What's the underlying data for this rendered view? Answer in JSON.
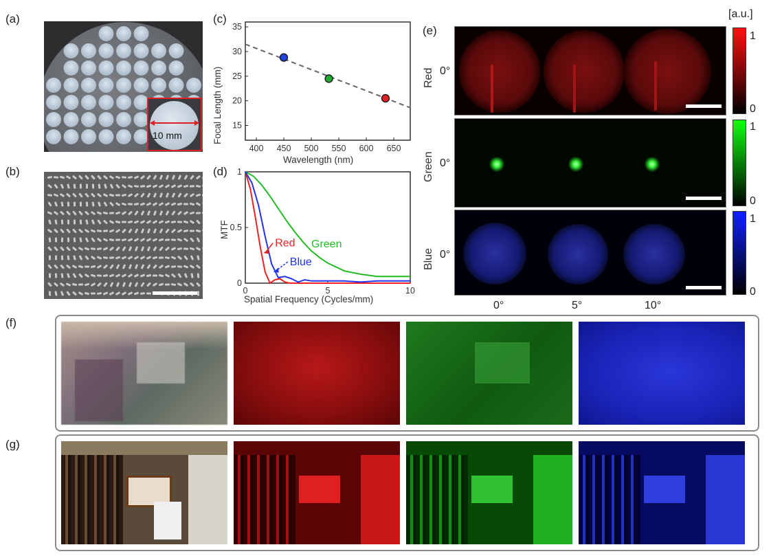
{
  "panel_labels": {
    "a": "(a)",
    "b": "(b)",
    "c": "(c)",
    "d": "(d)",
    "e": "(e)",
    "f": "(f)",
    "g": "(g)"
  },
  "panel_a": {
    "inset_label": "10 mm",
    "lens_rows": 7,
    "lens_cols": 9
  },
  "chart_data": [
    {
      "type": "scatter",
      "xlabel": "Wavelength (nm)",
      "ylabel": "Focal Length (mm)",
      "xlim": [
        380,
        680
      ],
      "ylim": [
        12,
        36
      ],
      "xticks": [
        "400",
        "450",
        "500",
        "550",
        "600",
        "650"
      ],
      "yticks": [
        "15",
        "20",
        "25",
        "30",
        "35"
      ],
      "points": [
        {
          "x": 450,
          "y": 28.8,
          "color": "#2244dd"
        },
        {
          "x": 532,
          "y": 24.5,
          "color": "#22aa33"
        },
        {
          "x": 635,
          "y": 20.5,
          "color": "#dd2222"
        }
      ],
      "fit_line": {
        "x": [
          380,
          680
        ],
        "y": [
          31.5,
          18.6
        ],
        "color": "#666666"
      }
    },
    {
      "type": "line",
      "xlabel": "Spatial Frequency (Cycles/mm)",
      "ylabel": "MTF",
      "xlim": [
        0,
        10
      ],
      "ylim": [
        0,
        1
      ],
      "xticks": [
        "0",
        "5",
        "10"
      ],
      "yticks": [
        "0",
        "0.5",
        "1"
      ],
      "series": [
        {
          "name": "Green",
          "color": "#22bb22",
          "x": [
            0,
            0.5,
            1,
            1.5,
            2,
            2.5,
            3,
            3.5,
            4,
            4.5,
            5,
            6,
            7,
            8,
            9,
            10
          ],
          "y": [
            1,
            0.96,
            0.88,
            0.78,
            0.67,
            0.56,
            0.46,
            0.37,
            0.29,
            0.23,
            0.18,
            0.11,
            0.08,
            0.06,
            0.06,
            0.06
          ]
        },
        {
          "name": "Red",
          "color": "#ee2222",
          "x": [
            0,
            0.3,
            0.6,
            0.9,
            1.2,
            1.5,
            1.8,
            2.1,
            2.4,
            2.7,
            3,
            10
          ],
          "y": [
            1,
            0.85,
            0.6,
            0.33,
            0.1,
            0.0,
            0.03,
            0.04,
            0.01,
            0.0,
            0.0,
            0.0
          ]
        },
        {
          "name": "Blue",
          "color": "#2233ee",
          "x": [
            0,
            0.4,
            0.8,
            1.2,
            1.6,
            2.0,
            2.4,
            2.8,
            3.2,
            3.6,
            4,
            5,
            6,
            7,
            8,
            9,
            10
          ],
          "y": [
            1,
            0.9,
            0.7,
            0.42,
            0.17,
            0.05,
            0.06,
            0.04,
            0.01,
            0.03,
            0.02,
            0.02,
            0.02,
            0.01,
            0.02,
            0.02,
            0.02
          ]
        }
      ]
    }
  ],
  "panel_e": {
    "unit_label": "[a.u.]",
    "rows": [
      {
        "name": "Red",
        "angle": "0°",
        "color": "#ff1010",
        "cb_top": "1",
        "cb_bottom": "0"
      },
      {
        "name": "Green",
        "angle": "0°",
        "color": "#10ff10",
        "cb_top": "1",
        "cb_bottom": "0"
      },
      {
        "name": "Blue",
        "angle": "0°",
        "color": "#1020ff",
        "cb_top": "1",
        "cb_bottom": "0"
      }
    ],
    "columns": [
      "0°",
      "5°",
      "10°"
    ]
  }
}
